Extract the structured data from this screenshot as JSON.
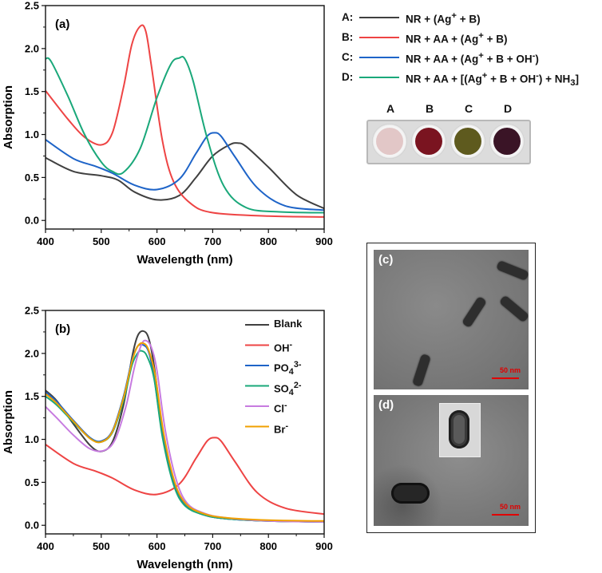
{
  "chart_data": [
    {
      "type": "line",
      "panel_label": "(a)",
      "xlabel": "Wavelength (nm)",
      "ylabel": "Absorption",
      "xlim": [
        400,
        900
      ],
      "ylim": [
        -0.1,
        2.5
      ],
      "xticks": [
        "400",
        "500",
        "600",
        "700",
        "800",
        "900"
      ],
      "yticks": [
        "0.0",
        "0.5",
        "1.0",
        "1.5",
        "2.0",
        "2.5"
      ],
      "series": [
        {
          "name": "A",
          "color": "#404040",
          "x": [
            400,
            450,
            500,
            530,
            560,
            600,
            640,
            670,
            700,
            730,
            745,
            760,
            800,
            850,
            900
          ],
          "y": [
            0.73,
            0.57,
            0.52,
            0.47,
            0.33,
            0.24,
            0.29,
            0.5,
            0.75,
            0.88,
            0.9,
            0.86,
            0.62,
            0.3,
            0.14
          ]
        },
        {
          "name": "B",
          "color": "#ee4444",
          "x": [
            400,
            440,
            470,
            500,
            520,
            540,
            555,
            570,
            580,
            590,
            610,
            630,
            660,
            700,
            800,
            900
          ],
          "y": [
            1.51,
            1.18,
            0.97,
            0.88,
            1.02,
            1.55,
            2.05,
            2.26,
            2.2,
            1.8,
            0.92,
            0.45,
            0.2,
            0.09,
            0.05,
            0.04
          ]
        },
        {
          "name": "C",
          "color": "#1e64c8",
          "x": [
            400,
            450,
            490,
            520,
            560,
            600,
            640,
            670,
            690,
            703,
            715,
            740,
            780,
            830,
            900
          ],
          "y": [
            0.94,
            0.72,
            0.63,
            0.55,
            0.41,
            0.36,
            0.48,
            0.78,
            0.98,
            1.02,
            0.98,
            0.74,
            0.38,
            0.17,
            0.12
          ]
        },
        {
          "name": "D",
          "color": "#1aa87a",
          "x": [
            400,
            410,
            440,
            470,
            500,
            520,
            540,
            570,
            600,
            625,
            640,
            650,
            665,
            690,
            720,
            760,
            820,
            900
          ],
          "y": [
            1.88,
            1.85,
            1.45,
            1.0,
            0.68,
            0.57,
            0.56,
            0.84,
            1.43,
            1.82,
            1.89,
            1.88,
            1.62,
            0.96,
            0.4,
            0.15,
            0.1,
            0.09
          ]
        }
      ]
    },
    {
      "type": "line",
      "panel_label": "(b)",
      "xlabel": "Wavelength (nm)",
      "ylabel": "Absorption",
      "xlim": [
        400,
        900
      ],
      "ylim": [
        -0.1,
        2.5
      ],
      "xticks": [
        "400",
        "500",
        "600",
        "700",
        "800",
        "900"
      ],
      "yticks": [
        "0.0",
        "0.5",
        "1.0",
        "1.5",
        "2.0",
        "2.5"
      ],
      "legend_position": "top-right",
      "series": [
        {
          "name": "Blank",
          "html": "Blank",
          "color": "#404040",
          "x": [
            400,
            420,
            450,
            480,
            500,
            520,
            540,
            555,
            565,
            575,
            585,
            595,
            610,
            630,
            650,
            680,
            720,
            800,
            900
          ],
          "y": [
            1.57,
            1.45,
            1.18,
            0.93,
            0.86,
            0.97,
            1.4,
            1.95,
            2.2,
            2.26,
            2.18,
            1.85,
            1.12,
            0.5,
            0.24,
            0.13,
            0.08,
            0.05,
            0.04
          ]
        },
        {
          "name": "OH-",
          "html": "OH<sup>-</sup>",
          "color": "#ee4444",
          "x": [
            400,
            450,
            490,
            520,
            560,
            600,
            640,
            670,
            690,
            703,
            715,
            740,
            780,
            830,
            900
          ],
          "y": [
            0.94,
            0.72,
            0.63,
            0.55,
            0.41,
            0.36,
            0.48,
            0.78,
            0.98,
            1.02,
            0.98,
            0.74,
            0.38,
            0.2,
            0.13
          ]
        },
        {
          "name": "PO43-",
          "html": "PO<sub>4</sub><sup>3-</sup>",
          "color": "#1e64c8",
          "x": [
            400,
            420,
            450,
            480,
            500,
            520,
            540,
            555,
            565,
            575,
            585,
            595,
            610,
            630,
            650,
            680,
            720,
            800,
            900
          ],
          "y": [
            1.55,
            1.44,
            1.22,
            1.02,
            0.98,
            1.1,
            1.5,
            1.92,
            2.08,
            2.1,
            2.02,
            1.72,
            1.05,
            0.48,
            0.24,
            0.13,
            0.08,
            0.05,
            0.04
          ]
        },
        {
          "name": "SO42-",
          "html": "SO<sub>4</sub><sup>2-</sup>",
          "color": "#1aa87a",
          "x": [
            400,
            420,
            450,
            480,
            500,
            520,
            540,
            555,
            565,
            572,
            582,
            595,
            610,
            630,
            650,
            680,
            720,
            800,
            900
          ],
          "y": [
            1.5,
            1.4,
            1.2,
            1.01,
            0.97,
            1.08,
            1.45,
            1.86,
            2.0,
            2.03,
            1.97,
            1.7,
            1.02,
            0.47,
            0.23,
            0.13,
            0.08,
            0.05,
            0.04
          ]
        },
        {
          "name": "Cl-",
          "html": "Cl<sup>-</sup>",
          "color": "#c77be0",
          "x": [
            400,
            420,
            450,
            480,
            505,
            525,
            545,
            560,
            572,
            580,
            590,
            600,
            615,
            635,
            655,
            685,
            720,
            800,
            900
          ],
          "y": [
            1.38,
            1.25,
            1.05,
            0.89,
            0.87,
            1.0,
            1.4,
            1.85,
            2.1,
            2.15,
            2.07,
            1.8,
            1.1,
            0.52,
            0.25,
            0.14,
            0.09,
            0.05,
            0.04
          ]
        },
        {
          "name": "Br-",
          "html": "Br<sup>-</sup>",
          "color": "#f0a000",
          "x": [
            400,
            420,
            450,
            480,
            500,
            520,
            540,
            555,
            565,
            575,
            585,
            597,
            612,
            632,
            652,
            682,
            720,
            800,
            900
          ],
          "y": [
            1.53,
            1.42,
            1.21,
            1.01,
            0.97,
            1.09,
            1.48,
            1.9,
            2.08,
            2.12,
            2.04,
            1.74,
            1.07,
            0.5,
            0.25,
            0.14,
            0.09,
            0.06,
            0.05
          ]
        }
      ]
    }
  ],
  "legend_a": [
    {
      "key": "A:",
      "html": "NR + (Ag<sup>+</sup> + B)",
      "color": "#404040"
    },
    {
      "key": "B:",
      "html": "NR + AA + (Ag<sup>+</sup> + B)",
      "color": "#ee4444"
    },
    {
      "key": "C:",
      "html": "NR + AA + (Ag<sup>+</sup> + B + OH<sup>-</sup>)",
      "color": "#1e64c8"
    },
    {
      "key": "D:",
      "html": "NR + AA + [(Ag<sup>+</sup> + B + OH<sup>-</sup>) + NH<sub>3</sub>]",
      "color": "#1aa87a"
    }
  ],
  "vials": [
    {
      "label": "A",
      "color": "#e2c7c7"
    },
    {
      "label": "B",
      "color": "#7a1420"
    },
    {
      "label": "C",
      "color": "#5e5a1e"
    },
    {
      "label": "D",
      "color": "#3a1426"
    }
  ],
  "tem": {
    "c": {
      "label": "(c)",
      "scale": "50 nm"
    },
    "d": {
      "label": "(d)",
      "scale": "50 nm"
    }
  }
}
